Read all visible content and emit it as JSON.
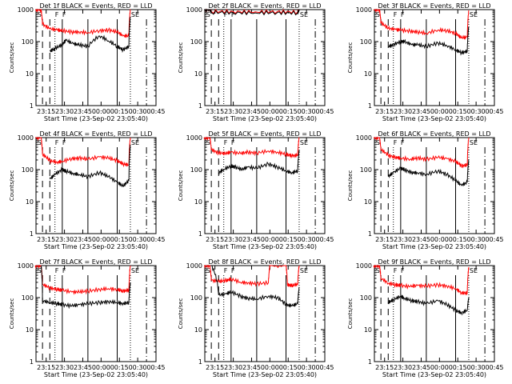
{
  "figure": {
    "xlabel": "Start Time (23-Sep-02 23:05:40)",
    "ylabel": "Counts/sec",
    "x_tick_labels": [
      "23:15",
      "23:30",
      "23:45",
      "00:00",
      "00:15",
      "00:30",
      "00:45"
    ]
  },
  "chart_data": [
    {
      "type": "line",
      "title": "Det 1f BLACK = Events, RED = LLD",
      "xlabel": "Start Time (23-Sep-02 23:05:40)",
      "ylabel": "Counts/sec",
      "yscale": "log",
      "xlim": [
        23.1111,
        24.75
      ],
      "ylim": [
        1,
        1000
      ],
      "grid": false,
      "markers": [
        "S",
        "F",
        "F",
        "SE"
      ],
      "series": [
        {
          "name": "Events",
          "color": "#000000",
          "x": [
            23.3,
            23.37,
            23.47,
            23.52,
            23.62,
            23.7,
            23.82,
            23.98,
            24.1,
            24.22,
            24.3,
            24.38,
            24.4
          ],
          "y": [
            50,
            60,
            80,
            110,
            85,
            80,
            70,
            150,
            105,
            70,
            55,
            70,
            600
          ]
        },
        {
          "name": "LLD",
          "color": "#ff0000",
          "x": [
            23.1,
            23.18,
            23.2,
            23.3,
            23.4,
            23.47,
            23.6,
            23.7,
            23.82,
            23.98,
            24.1,
            24.22,
            24.3,
            24.38,
            24.4
          ],
          "y": [
            1000,
            1000,
            350,
            250,
            230,
            220,
            200,
            200,
            190,
            220,
            230,
            200,
            150,
            150,
            1000
          ]
        }
      ]
    },
    {
      "type": "line",
      "title": "Det 2f BLACK = Events, RED = LLD",
      "xlabel": "Start Time (23-Sep-02 23:05:40)",
      "ylabel": "Counts/sec",
      "yscale": "log",
      "xlim": [
        23.1111,
        24.75
      ],
      "ylim": [
        1,
        1000
      ],
      "grid": false,
      "markers": [
        "S",
        "F",
        "F",
        "SE"
      ],
      "series": [
        {
          "name": "Events",
          "color": "#000000",
          "x": [
            23.1,
            23.18,
            23.2,
            23.5,
            23.8,
            24.1,
            24.38,
            24.4
          ],
          "y": [
            1000,
            1000,
            820,
            800,
            790,
            800,
            780,
            1000
          ]
        },
        {
          "name": "LLD",
          "color": "#ff0000",
          "x": [
            23.1,
            23.18,
            23.2,
            23.5,
            23.8,
            24.1,
            24.38,
            24.4
          ],
          "y": [
            1000,
            1000,
            880,
            860,
            850,
            860,
            840,
            1000
          ]
        }
      ]
    },
    {
      "type": "line",
      "title": "Det 3f BLACK = Events, RED = LLD",
      "xlabel": "Start Time (23-Sep-02 23:05:40)",
      "ylabel": "Counts/sec",
      "yscale": "log",
      "xlim": [
        23.1111,
        24.75
      ],
      "ylim": [
        1,
        1000
      ],
      "grid": false,
      "markers": [
        "S",
        "F",
        "F",
        "SE"
      ],
      "series": [
        {
          "name": "Events",
          "color": "#000000",
          "x": [
            23.3,
            23.37,
            23.47,
            23.52,
            23.62,
            23.7,
            23.82,
            23.98,
            24.1,
            24.22,
            24.3,
            24.38,
            24.4
          ],
          "y": [
            70,
            80,
            100,
            100,
            80,
            80,
            70,
            90,
            75,
            55,
            45,
            50,
            300
          ]
        },
        {
          "name": "LLD",
          "color": "#ff0000",
          "x": [
            23.1,
            23.18,
            23.2,
            23.3,
            23.4,
            23.47,
            23.6,
            23.7,
            23.82,
            23.98,
            24.1,
            24.22,
            24.3,
            24.38,
            24.4
          ],
          "y": [
            1000,
            1000,
            380,
            260,
            240,
            230,
            210,
            200,
            180,
            230,
            220,
            180,
            130,
            140,
            900
          ]
        }
      ]
    },
    {
      "type": "line",
      "title": "Det 4f BLACK = Events, RED = LLD",
      "xlabel": "Start Time (23-Sep-02 23:05:40)",
      "ylabel": "Counts/sec",
      "yscale": "log",
      "xlim": [
        23.1111,
        24.75
      ],
      "ylim": [
        1,
        1000
      ],
      "grid": false,
      "markers": [
        "S",
        "F",
        "F",
        "SE"
      ],
      "series": [
        {
          "name": "Events",
          "color": "#000000",
          "x": [
            23.3,
            23.37,
            23.47,
            23.52,
            23.62,
            23.7,
            23.82,
            23.98,
            24.1,
            24.22,
            24.3,
            24.38,
            24.4
          ],
          "y": [
            50,
            70,
            100,
            90,
            75,
            70,
            60,
            80,
            60,
            40,
            30,
            45,
            600
          ]
        },
        {
          "name": "LLD",
          "color": "#ff0000",
          "x": [
            23.1,
            23.18,
            23.2,
            23.3,
            23.4,
            23.47,
            23.6,
            23.7,
            23.82,
            23.98,
            24.1,
            24.22,
            24.3,
            24.38,
            24.4
          ],
          "y": [
            1000,
            1000,
            300,
            190,
            170,
            180,
            220,
            230,
            210,
            250,
            230,
            190,
            150,
            140,
            1000
          ]
        }
      ]
    },
    {
      "type": "line",
      "title": "Det 5f BLACK = Events, RED = LLD",
      "xlabel": "Start Time (23-Sep-02 23:05:40)",
      "ylabel": "Counts/sec",
      "yscale": "log",
      "xlim": [
        23.1111,
        24.75
      ],
      "ylim": [
        1,
        1000
      ],
      "grid": false,
      "markers": [
        "S",
        "F",
        "F",
        "SE"
      ],
      "series": [
        {
          "name": "Events",
          "color": "#000000",
          "x": [
            23.3,
            23.37,
            23.47,
            23.52,
            23.62,
            23.7,
            23.82,
            23.98,
            24.1,
            24.22,
            24.3,
            24.38,
            24.4
          ],
          "y": [
            80,
            100,
            130,
            120,
            100,
            120,
            110,
            150,
            120,
            90,
            80,
            90,
            400
          ]
        },
        {
          "name": "LLD",
          "color": "#ff0000",
          "x": [
            23.1,
            23.18,
            23.2,
            23.3,
            23.4,
            23.47,
            23.6,
            23.7,
            23.82,
            23.98,
            24.1,
            24.22,
            24.3,
            24.38,
            24.4
          ],
          "y": [
            1000,
            1000,
            420,
            330,
            320,
            350,
            320,
            350,
            330,
            380,
            350,
            300,
            270,
            280,
            1000
          ]
        }
      ]
    },
    {
      "type": "line",
      "title": "Det 6f BLACK = Events, RED = LLD",
      "xlabel": "Start Time (23-Sep-02 23:05:40)",
      "ylabel": "Counts/sec",
      "yscale": "log",
      "xlim": [
        23.1111,
        24.75
      ],
      "ylim": [
        1,
        1000
      ],
      "grid": false,
      "markers": [
        "S",
        "F",
        "F",
        "SE"
      ],
      "series": [
        {
          "name": "Events",
          "color": "#000000",
          "x": [
            23.3,
            23.37,
            23.47,
            23.52,
            23.62,
            23.7,
            23.82,
            23.98,
            24.1,
            24.22,
            24.3,
            24.38,
            24.4
          ],
          "y": [
            60,
            80,
            110,
            100,
            80,
            80,
            70,
            90,
            70,
            45,
            32,
            40,
            200
          ]
        },
        {
          "name": "LLD",
          "color": "#ff0000",
          "x": [
            23.1,
            23.18,
            23.2,
            23.3,
            23.4,
            23.47,
            23.6,
            23.7,
            23.82,
            23.98,
            24.1,
            24.22,
            24.3,
            24.38,
            24.4
          ],
          "y": [
            1000,
            1000,
            420,
            280,
            240,
            230,
            210,
            230,
            210,
            240,
            220,
            180,
            130,
            140,
            1000
          ]
        }
      ]
    },
    {
      "type": "line",
      "title": "Det 7f BLACK = Events, RED = LLD",
      "xlabel": "Start Time (23-Sep-02 23:05:40)",
      "ylabel": "Counts/sec",
      "yscale": "log",
      "xlim": [
        23.1111,
        24.75
      ],
      "ylim": [
        1,
        1000
      ],
      "grid": false,
      "markers": [
        "S",
        "F",
        "F",
        "SE"
      ],
      "series": [
        {
          "name": "Events",
          "color": "#000000",
          "x": [
            23.18,
            23.2,
            23.3,
            23.4,
            23.47,
            23.6,
            23.7,
            23.82,
            23.98,
            24.1,
            24.22,
            24.3,
            24.38,
            24.4
          ],
          "y": [
            1000,
            80,
            70,
            65,
            60,
            55,
            60,
            65,
            70,
            75,
            70,
            65,
            70,
            300
          ]
        },
        {
          "name": "LLD",
          "color": "#ff0000",
          "x": [
            23.1,
            23.18,
            23.2,
            23.3,
            23.4,
            23.47,
            23.6,
            23.7,
            23.82,
            23.98,
            24.1,
            24.22,
            24.3,
            24.38,
            24.4
          ],
          "y": [
            1000,
            1000,
            260,
            200,
            180,
            170,
            150,
            150,
            160,
            180,
            190,
            180,
            160,
            170,
            1000
          ]
        }
      ]
    },
    {
      "type": "line",
      "title": "Det 8f BLACK = Events, RED = LLD",
      "xlabel": "Start Time (23-Sep-02 23:05:40)",
      "ylabel": "Counts/sec",
      "yscale": "log",
      "xlim": [
        23.1111,
        24.75
      ],
      "ylim": [
        1,
        1000
      ],
      "grid": false,
      "markers": [
        "S",
        "F",
        "F",
        "SE"
      ],
      "series": [
        {
          "name": "Events",
          "color": "#000000",
          "x": [
            23.2,
            23.3,
            23.4,
            23.47,
            23.6,
            23.7,
            23.82,
            23.98,
            24.1,
            24.22,
            24.3,
            24.38,
            24.4
          ],
          "y": [
            1000,
            120,
            130,
            150,
            110,
            95,
            90,
            110,
            100,
            60,
            55,
            65,
            200
          ]
        },
        {
          "name": "LLD",
          "color": "#ff0000",
          "x": [
            23.1,
            23.18,
            23.2,
            23.3,
            23.4,
            23.47,
            23.6,
            23.7,
            23.82,
            23.98,
            24.0,
            24.22,
            24.24,
            24.3,
            24.38,
            24.4
          ],
          "y": [
            1000,
            1000,
            350,
            320,
            340,
            380,
            300,
            290,
            270,
            290,
            1000,
            1000,
            250,
            240,
            260,
            1000
          ]
        }
      ]
    },
    {
      "type": "line",
      "title": "Det 9f BLACK = Events, RED = LLD",
      "xlabel": "Start Time (23-Sep-02 23:05:40)",
      "ylabel": "Counts/sec",
      "yscale": "log",
      "xlim": [
        23.1111,
        24.75
      ],
      "ylim": [
        1,
        1000
      ],
      "grid": false,
      "markers": [
        "S",
        "F",
        "F",
        "SE"
      ],
      "series": [
        {
          "name": "Events",
          "color": "#000000",
          "x": [
            23.3,
            23.37,
            23.47,
            23.52,
            23.62,
            23.7,
            23.82,
            23.98,
            24.1,
            24.22,
            24.3,
            24.38,
            24.4
          ],
          "y": [
            70,
            85,
            110,
            95,
            80,
            75,
            65,
            80,
            60,
            40,
            33,
            40,
            100
          ]
        },
        {
          "name": "LLD",
          "color": "#ff0000",
          "x": [
            23.1,
            23.18,
            23.2,
            23.3,
            23.4,
            23.47,
            23.6,
            23.7,
            23.82,
            23.98,
            24.1,
            24.22,
            24.3,
            24.38,
            24.4
          ],
          "y": [
            1000,
            1000,
            400,
            280,
            250,
            240,
            220,
            240,
            230,
            250,
            230,
            190,
            140,
            140,
            900
          ]
        }
      ]
    }
  ],
  "events": {
    "dashed": [
      23.2,
      23.3
    ],
    "dotted": [
      23.37,
      24.4
    ],
    "solid": [
      23.47,
      23.82,
      24.22
    ],
    "dashdot": [
      24.62
    ]
  },
  "y_tick_labels": [
    "1",
    "10",
    "100",
    "1000"
  ]
}
